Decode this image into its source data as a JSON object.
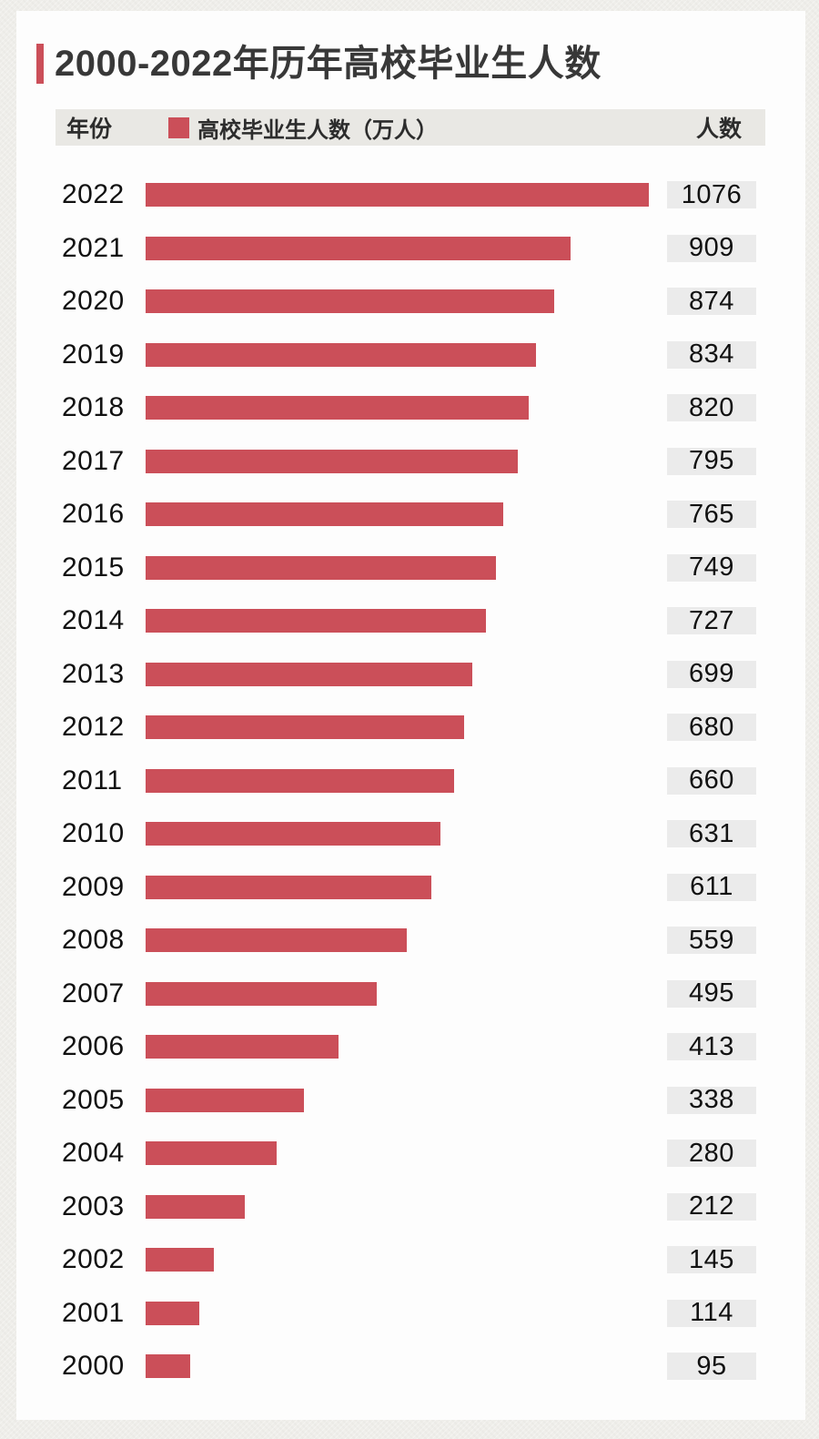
{
  "page": {
    "title": "2000-2022年历年高校毕业生人数"
  },
  "header": {
    "year_col": "年份",
    "legend_label": "高校毕业生人数（万人）",
    "value_col": "人数"
  },
  "colors": {
    "bar": "#cb4f59",
    "accent": "#cb4f59",
    "header_band_bg": "#e9e8e4",
    "value_badge_bg": "#ebebeb",
    "card_bg": "#fdfdfd",
    "page_bg": "#efeeea",
    "title_text": "#383838"
  },
  "chart_data": {
    "type": "bar",
    "orientation": "horizontal",
    "title": "2000-2022年历年高校毕业生人数",
    "legend": [
      "高校毕业生人数（万人）"
    ],
    "unit": "万人",
    "categories": [
      "2022",
      "2021",
      "2020",
      "2019",
      "2018",
      "2017",
      "2016",
      "2015",
      "2014",
      "2013",
      "2012",
      "2011",
      "2010",
      "2009",
      "2008",
      "2007",
      "2006",
      "2005",
      "2004",
      "2003",
      "2002",
      "2001",
      "2000"
    ],
    "values": [
      1076,
      909,
      874,
      834,
      820,
      795,
      765,
      749,
      727,
      699,
      680,
      660,
      631,
      611,
      559,
      495,
      413,
      338,
      280,
      212,
      145,
      114,
      95
    ],
    "xlim": [
      0,
      1100
    ],
    "grid": false,
    "value_labels_shown": true
  }
}
